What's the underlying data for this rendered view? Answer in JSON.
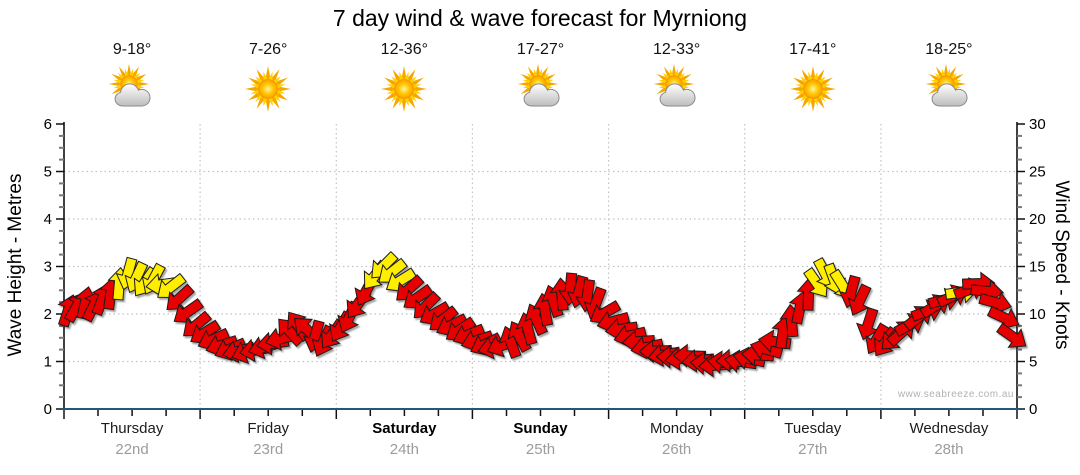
{
  "title": "7 day wind & wave forecast for Myrniong",
  "watermark": "www.seabreeze.com.au",
  "left_axis": {
    "label": "Wave Height - Metres",
    "ticks": [
      0,
      1,
      2,
      3,
      4,
      5,
      6
    ]
  },
  "right_axis": {
    "label": "Wind Speed - Knots",
    "ticks": [
      0,
      5,
      10,
      15,
      20,
      25,
      30
    ]
  },
  "days": [
    {
      "name": "Thursday",
      "date": "22nd",
      "temp": "9-18°",
      "icon": "sun-cloud",
      "bold": false
    },
    {
      "name": "Friday",
      "date": "23rd",
      "temp": "7-26°",
      "icon": "sun",
      "bold": false
    },
    {
      "name": "Saturday",
      "date": "24th",
      "temp": "12-36°",
      "icon": "sun",
      "bold": true
    },
    {
      "name": "Sunday",
      "date": "25th",
      "temp": "17-27°",
      "icon": "sun-cloud",
      "bold": true
    },
    {
      "name": "Monday",
      "date": "26th",
      "temp": "12-33°",
      "icon": "sun-cloud",
      "bold": false
    },
    {
      "name": "Tuesday",
      "date": "27th",
      "temp": "17-41°",
      "icon": "sun",
      "bold": false
    },
    {
      "name": "Wednesday",
      "date": "28th",
      "temp": "18-25°",
      "icon": "sun-cloud",
      "bold": false
    }
  ],
  "chart_data": {
    "type": "scatter",
    "title": "7 day wind & wave forecast for Myrniong",
    "x_categories": [
      "Thursday 22nd",
      "Friday 23rd",
      "Saturday 24th",
      "Sunday 25th",
      "Monday 26th",
      "Tuesday 27th",
      "Wednesday 28th"
    ],
    "ylabel_left": "Wave Height - Metres",
    "ylabel_right": "Wind Speed - Knots",
    "ylim_left": [
      0,
      6
    ],
    "ylim_right": [
      0,
      30
    ],
    "grid": "dotted, horizontal every 1 m (5 kn), vertical at each day boundary",
    "legend": "none",
    "points_per_day": 16,
    "series": [
      {
        "name": "Wind speed & direction",
        "unit": "knots",
        "marker": "direction arrow",
        "color_key": "r = red arrow (lighter wind), y = yellow arrow (stronger wind ~13+ kn)",
        "colors": "rrrrrryyyyyyyrrrrrrrrrrrrrrrrrrrrrrryyyyrrrrrrrrrrrrrrrrrrrrrrrrrrrrrrrrrrrrrrrrrrrrrrrryyyyrrrrrrrrrrrrryrrrr",
        "speeds": [
          10.4,
          10.8,
          11.2,
          10.9,
          11.6,
          12.2,
          13.2,
          14.2,
          13.8,
          13.3,
          13.6,
          13.1,
          12.8,
          11.6,
          10.2,
          8.8,
          8.0,
          7.3,
          6.7,
          6.3,
          6.1,
          6.0,
          6.2,
          6.5,
          6.9,
          7.4,
          8.2,
          8.8,
          8.4,
          7.6,
          7.1,
          7.8,
          8.6,
          9.6,
          11.0,
          12.4,
          14.0,
          15.0,
          14.4,
          13.5,
          12.6,
          11.7,
          10.8,
          10.0,
          9.4,
          8.8,
          8.3,
          7.8,
          7.2,
          6.8,
          6.5,
          6.7,
          7.1,
          7.7,
          8.5,
          9.5,
          10.5,
          11.4,
          12.1,
          12.6,
          12.3,
          11.9,
          11.1,
          10.1,
          9.2,
          8.4,
          7.7,
          7.1,
          6.5,
          6.1,
          5.7,
          5.5,
          5.3,
          5.6,
          5.1,
          4.8,
          4.6,
          4.9,
          5.1,
          5.0,
          5.3,
          5.7,
          6.3,
          7.1,
          8.1,
          9.3,
          10.7,
          12.1,
          13.2,
          14.2,
          13.6,
          13.0,
          12.3,
          11.4,
          8.9,
          7.3,
          7.0,
          7.5,
          8.1,
          8.9,
          9.7,
          10.3,
          10.9,
          11.5,
          11.9,
          12.3,
          12.6,
          13.2,
          12.4,
          11.2,
          9.6,
          7.6
        ],
        "directions_deg": [
          18,
          30,
          12,
          26,
          20,
          8,
          5,
          195,
          205,
          215,
          208,
          262,
          232,
          228,
          235,
          230,
          238,
          246,
          252,
          247,
          256,
          250,
          260,
          254,
          262,
          256,
          318,
          325,
          312,
          195,
          205,
          215,
          210,
          205,
          215,
          208,
          218,
          225,
          232,
          238,
          228,
          235,
          225,
          240,
          232,
          244,
          236,
          248,
          252,
          244,
          256,
          248,
          340,
          332,
          345,
          336,
          350,
          342,
          355,
          185,
          195,
          188,
          200,
          240,
          255,
          262,
          256,
          266,
          258,
          268,
          260,
          270,
          262,
          272,
          264,
          274,
          266,
          276,
          268,
          278,
          282,
          274,
          286,
          278,
          8,
          355,
          12,
          2,
          145,
          152,
          160,
          148,
          195,
          205,
          198,
          210,
          215,
          225,
          48,
          62,
          52,
          70,
          58,
          76,
          64,
          82,
          70,
          88,
          95,
          105,
          115,
          125
        ]
      }
    ]
  },
  "colors": {
    "arrow_red": "#e60000",
    "arrow_yellow": "#ffee00",
    "arrow_outline": "#1a1a1a",
    "x_axis_line": "#1f5878",
    "axis_line": "#111111",
    "grid": "#c3c3c3",
    "tick_minor": "#787878",
    "date_text": "#9c9c9c",
    "watermark_text": "#b2b2b2",
    "sun_outer": "#f7a600",
    "sun_inner": "#ffd000",
    "cloud_fill": "#d9d9d9",
    "cloud_stroke": "#8a8a8a"
  }
}
